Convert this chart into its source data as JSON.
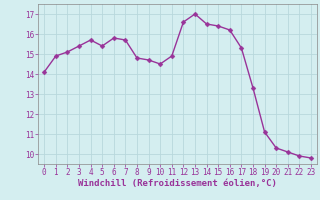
{
  "x": [
    0,
    1,
    2,
    3,
    4,
    5,
    6,
    7,
    8,
    9,
    10,
    11,
    12,
    13,
    14,
    15,
    16,
    17,
    18,
    19,
    20,
    21,
    22,
    23
  ],
  "y": [
    14.1,
    14.9,
    15.1,
    15.4,
    15.7,
    15.4,
    15.8,
    15.7,
    14.8,
    14.7,
    14.5,
    14.9,
    16.6,
    17.0,
    16.5,
    16.4,
    16.2,
    15.3,
    13.3,
    11.1,
    10.3,
    10.1,
    9.9,
    9.8
  ],
  "line_color": "#993399",
  "marker": "D",
  "marker_size": 2.5,
  "linewidth": 1.0,
  "bg_color": "#d4eef0",
  "grid_color": "#b8d8dc",
  "xlabel": "Windchill (Refroidissement éolien,°C)",
  "xlabel_color": "#993399",
  "tick_color": "#993399",
  "ylabel_ticks": [
    10,
    11,
    12,
    13,
    14,
    15,
    16,
    17
  ],
  "xlim": [
    -0.5,
    23.5
  ],
  "ylim": [
    9.5,
    17.5
  ],
  "xticks": [
    0,
    1,
    2,
    3,
    4,
    5,
    6,
    7,
    8,
    9,
    10,
    11,
    12,
    13,
    14,
    15,
    16,
    17,
    18,
    19,
    20,
    21,
    22,
    23
  ],
  "tick_fontsize": 5.5,
  "xlabel_fontsize": 6.5
}
